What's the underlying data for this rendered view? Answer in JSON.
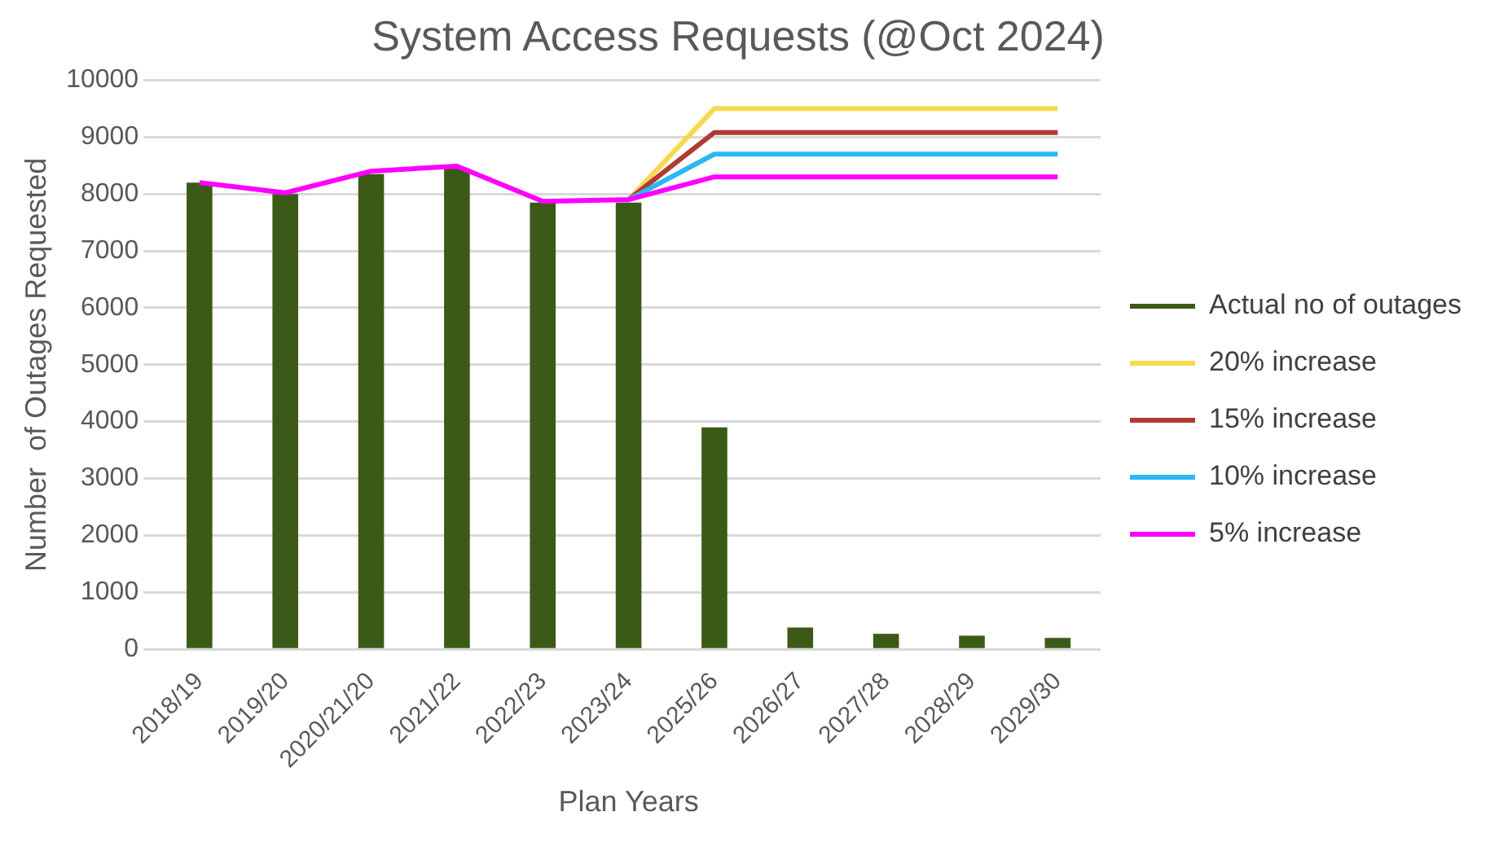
{
  "chart_data": {
    "type": "bar",
    "title": "System Access Requests (@Oct 2024)",
    "xlabel": "Plan Years",
    "ylabel": "Number  of Outages Requested",
    "categories": [
      "2018/19",
      "2019/20",
      "2020/21/20",
      "2021/22",
      "2022/23",
      "2023/24",
      "2025/26",
      "2026/27",
      "2027/28",
      "2028/29",
      "2029/30"
    ],
    "series": [
      {
        "name": "Actual no of outages",
        "color": "#3b5a17",
        "values": [
          8200,
          8000,
          8350,
          8450,
          7850,
          7850,
          3900,
          380,
          270,
          240,
          200
        ]
      },
      {
        "name": "20% increase",
        "type": "line",
        "color": "#f8d84f",
        "values": [
          null,
          null,
          null,
          null,
          null,
          7900,
          9500,
          9500,
          9500,
          9500,
          9500
        ]
      },
      {
        "name": "15% increase",
        "type": "line",
        "color": "#b03a32",
        "values": [
          null,
          null,
          null,
          null,
          null,
          7900,
          9080,
          9080,
          9080,
          9080,
          9080
        ]
      },
      {
        "name": "10% increase",
        "type": "line",
        "color": "#2db6f5",
        "values": [
          null,
          null,
          null,
          null,
          null,
          7900,
          8700,
          8700,
          8700,
          8700,
          8700
        ]
      },
      {
        "name": "5% increase",
        "type": "line",
        "color": "#ff00ff",
        "values": [
          8200,
          8020,
          8400,
          8490,
          7870,
          7900,
          8300,
          8300,
          8300,
          8300,
          8300
        ]
      }
    ],
    "ylim": [
      0,
      10000
    ],
    "yticks": [
      0,
      1000,
      2000,
      3000,
      4000,
      5000,
      6000,
      7000,
      8000,
      9000,
      10000
    ],
    "grid": "y",
    "legend": "right",
    "marker": "none"
  }
}
